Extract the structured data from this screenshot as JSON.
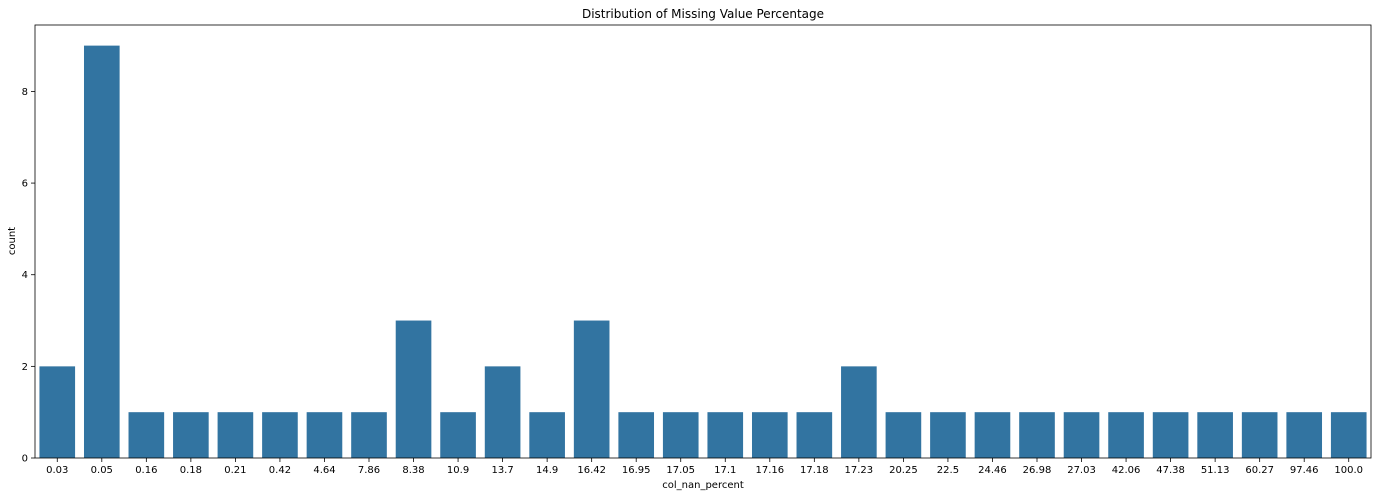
{
  "chart_data": {
    "type": "bar",
    "title": "Distribution of Missing Value Percentage",
    "xlabel": "col_nan_percent",
    "ylabel": "count",
    "categories": [
      "0.03",
      "0.05",
      "0.16",
      "0.18",
      "0.21",
      "0.42",
      "4.64",
      "7.86",
      "8.38",
      "10.9",
      "13.7",
      "14.9",
      "16.42",
      "16.95",
      "17.05",
      "17.1",
      "17.16",
      "17.18",
      "17.23",
      "20.25",
      "22.5",
      "24.46",
      "26.98",
      "27.03",
      "42.06",
      "47.38",
      "51.13",
      "60.27",
      "97.46",
      "100.0"
    ],
    "values": [
      2,
      9,
      1,
      1,
      1,
      1,
      1,
      1,
      3,
      1,
      2,
      1,
      3,
      1,
      1,
      1,
      1,
      1,
      2,
      1,
      1,
      1,
      1,
      1,
      1,
      1,
      1,
      1,
      1,
      1
    ],
    "ylim": [
      0,
      9.45
    ],
    "yticks": [
      0,
      2,
      4,
      6,
      8
    ],
    "grid": false,
    "legend": "none",
    "bar_color": "#3274a1"
  }
}
